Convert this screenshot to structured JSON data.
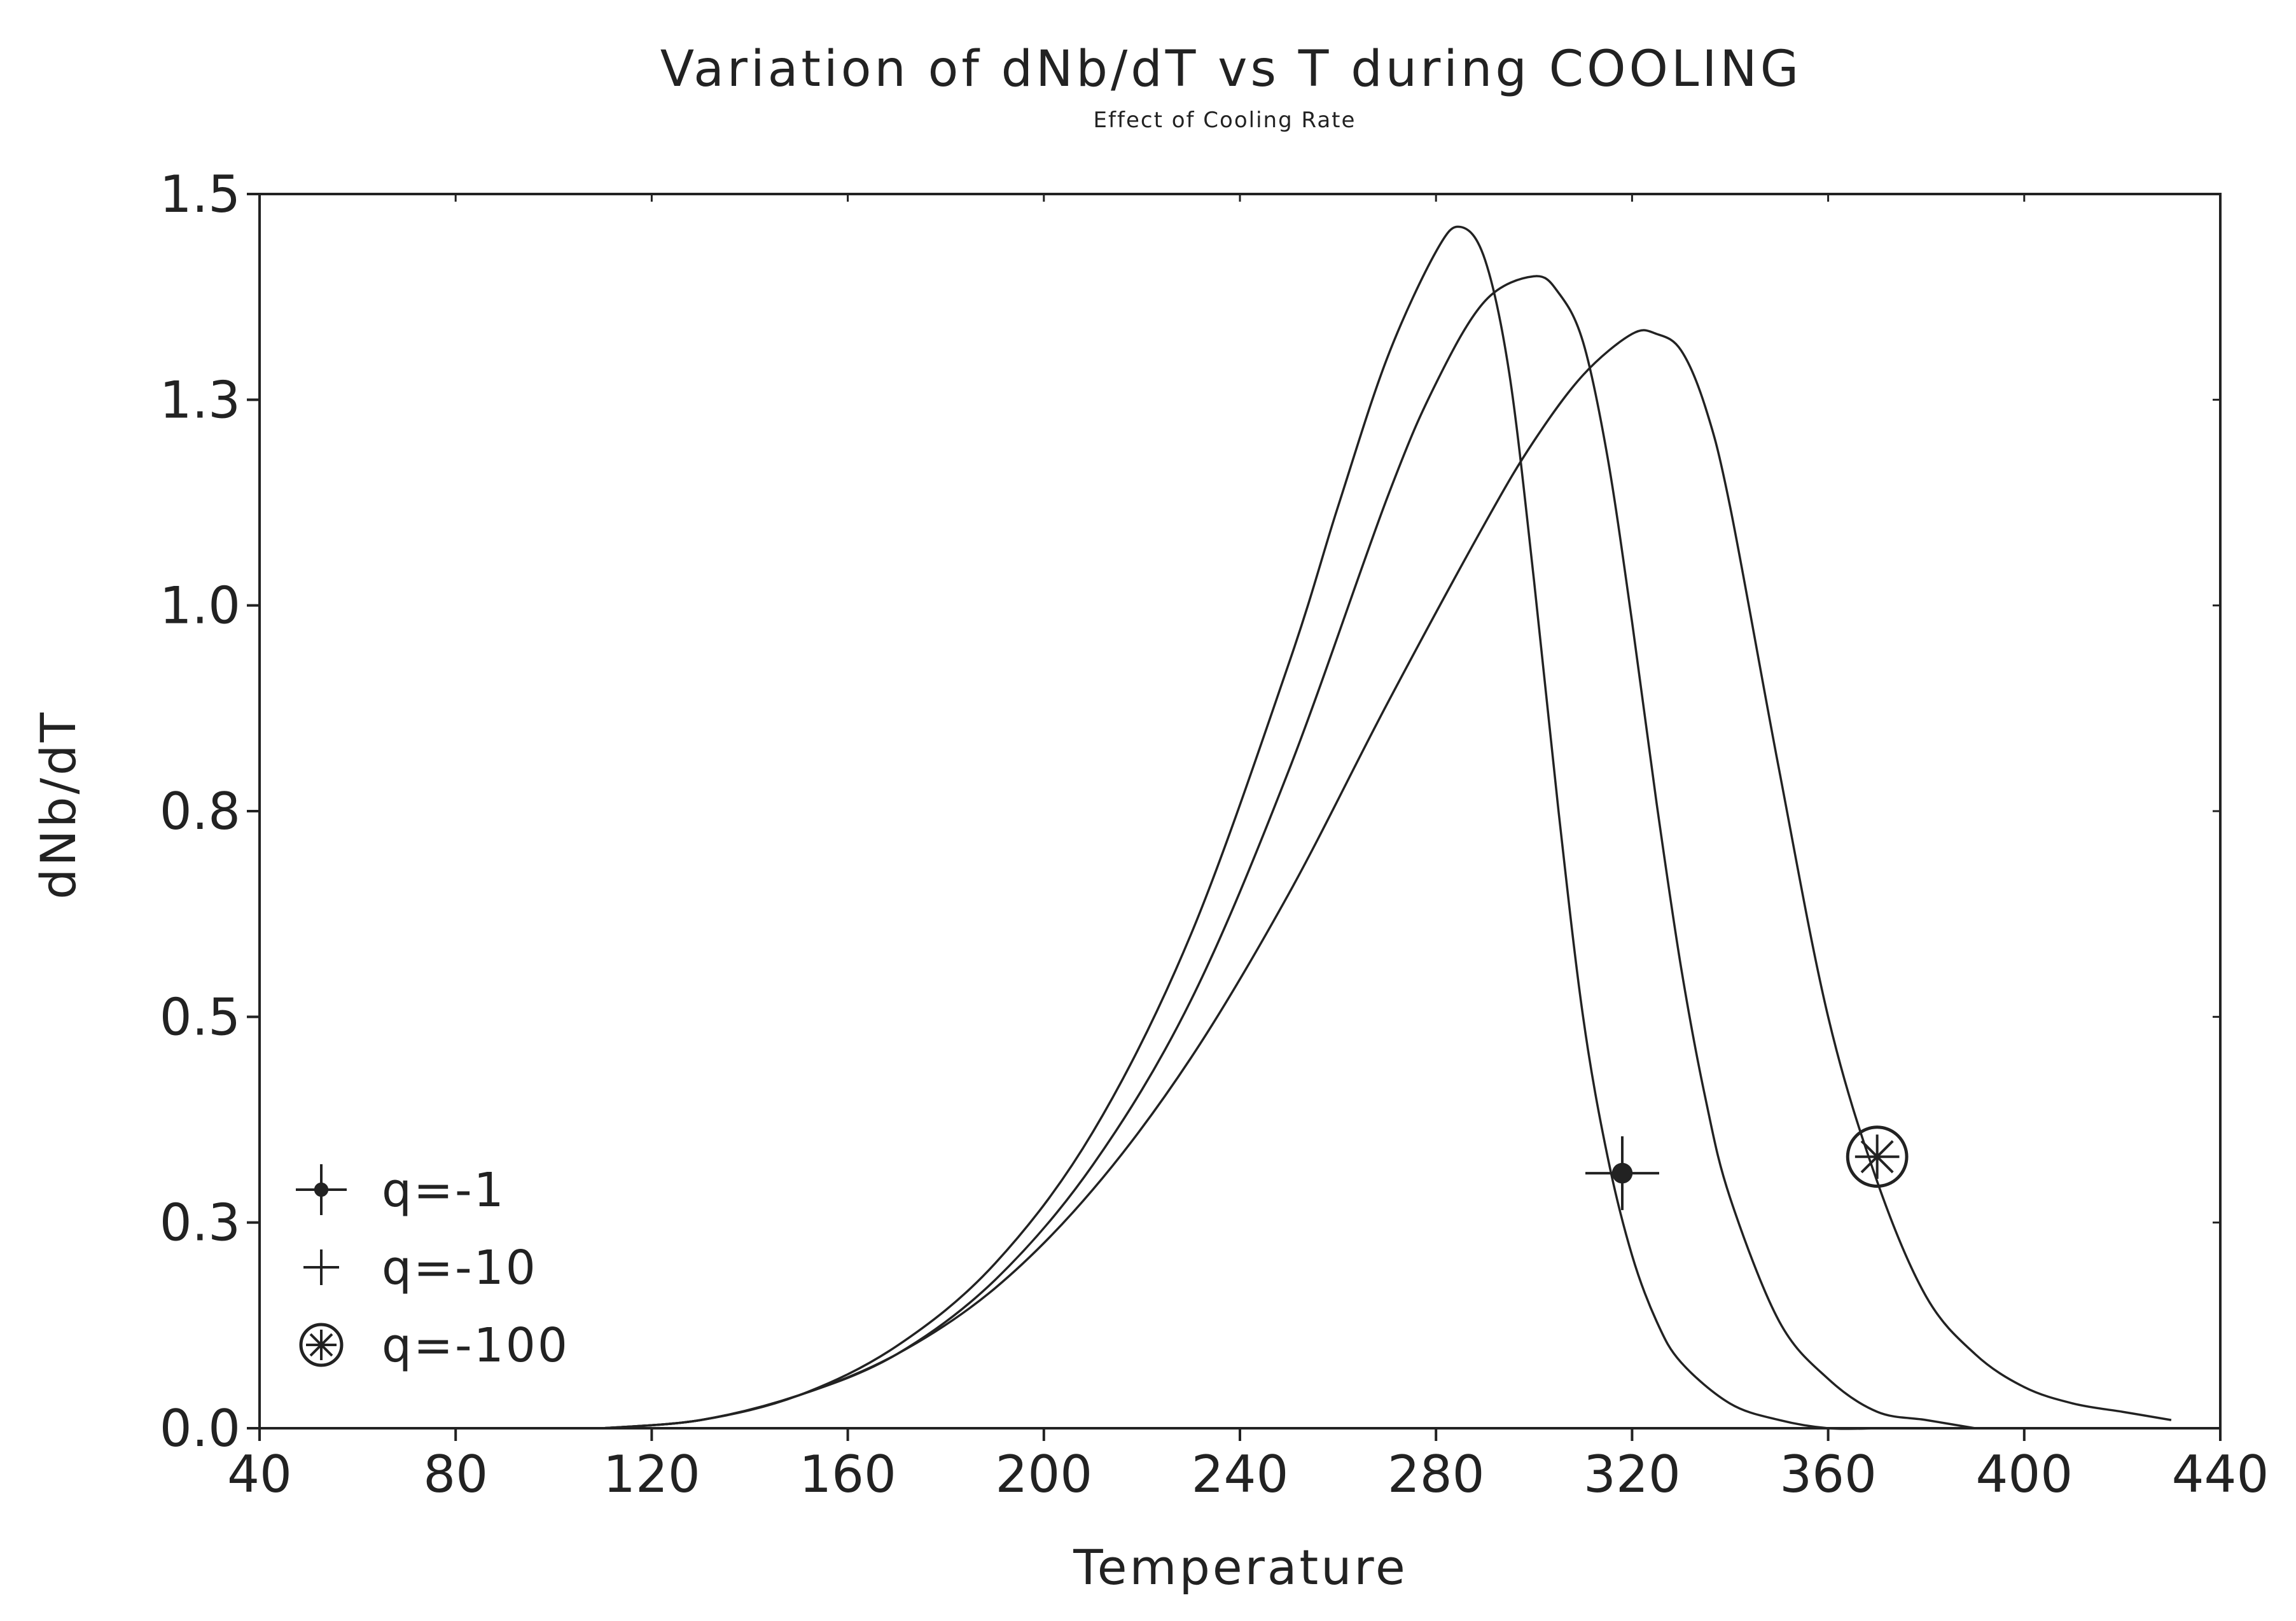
{
  "chart_data": {
    "type": "line",
    "title": "Variation of dNb/dT vs T during COOLING",
    "subtitle": "Effect of Cooling Rate",
    "xlabel": "Temperature",
    "ylabel": "dNb/dT",
    "xlim": [
      40,
      440
    ],
    "ylim": [
      0,
      1.5
    ],
    "xticks": [
      40,
      80,
      120,
      160,
      200,
      240,
      280,
      320,
      360,
      400,
      440
    ],
    "xtick_labels": [
      "40",
      "80",
      "120",
      "160",
      "200",
      "240",
      "280",
      "320",
      "360",
      "400",
      "440"
    ],
    "yticks": [
      0.0,
      0.25,
      0.5,
      0.75,
      1.0,
      1.25,
      1.5
    ],
    "ytick_labels": [
      "0.0",
      "0.3",
      "0.5",
      "0.8",
      "1.0",
      "1.3",
      "1.5"
    ],
    "grid": false,
    "legend_position": "bottom-left",
    "line_color": "#222222",
    "series": [
      {
        "name": "q=-1",
        "marker": "star-dot",
        "marker_at": [
          318,
          0.31
        ],
        "x": [
          110,
          130,
          150,
          170,
          190,
          210,
          230,
          250,
          260,
          270,
          280,
          285,
          290,
          295,
          300,
          305,
          310,
          315,
          320,
          325,
          330,
          340,
          350,
          360,
          370
        ],
        "y": [
          0.0,
          0.01,
          0.04,
          0.1,
          0.2,
          0.36,
          0.6,
          0.93,
          1.12,
          1.3,
          1.43,
          1.46,
          1.42,
          1.28,
          1.03,
          0.75,
          0.5,
          0.33,
          0.21,
          0.13,
          0.08,
          0.03,
          0.01,
          0.0,
          0.0
        ]
      },
      {
        "name": "q=-10",
        "marker": "plus",
        "marker_at": [],
        "x": [
          110,
          130,
          150,
          170,
          190,
          210,
          230,
          250,
          270,
          280,
          290,
          300,
          305,
          310,
          315,
          320,
          325,
          330,
          335,
          340,
          350,
          360,
          370,
          380,
          390
        ],
        "y": [
          0.0,
          0.01,
          0.04,
          0.09,
          0.18,
          0.32,
          0.52,
          0.8,
          1.13,
          1.27,
          1.37,
          1.4,
          1.38,
          1.32,
          1.18,
          0.98,
          0.76,
          0.56,
          0.4,
          0.28,
          0.13,
          0.06,
          0.02,
          0.01,
          0.0
        ]
      },
      {
        "name": "q=-100",
        "marker": "circle-star",
        "marker_at": [
          370,
          0.33
        ],
        "x": [
          110,
          130,
          150,
          170,
          190,
          210,
          230,
          250,
          270,
          290,
          300,
          310,
          320,
          325,
          330,
          335,
          340,
          350,
          360,
          370,
          380,
          390,
          400,
          410,
          420,
          430
        ],
        "y": [
          0.0,
          0.01,
          0.04,
          0.09,
          0.17,
          0.29,
          0.45,
          0.65,
          0.88,
          1.1,
          1.2,
          1.28,
          1.33,
          1.33,
          1.31,
          1.24,
          1.12,
          0.8,
          0.5,
          0.3,
          0.16,
          0.09,
          0.05,
          0.03,
          0.02,
          0.01
        ]
      }
    ]
  }
}
